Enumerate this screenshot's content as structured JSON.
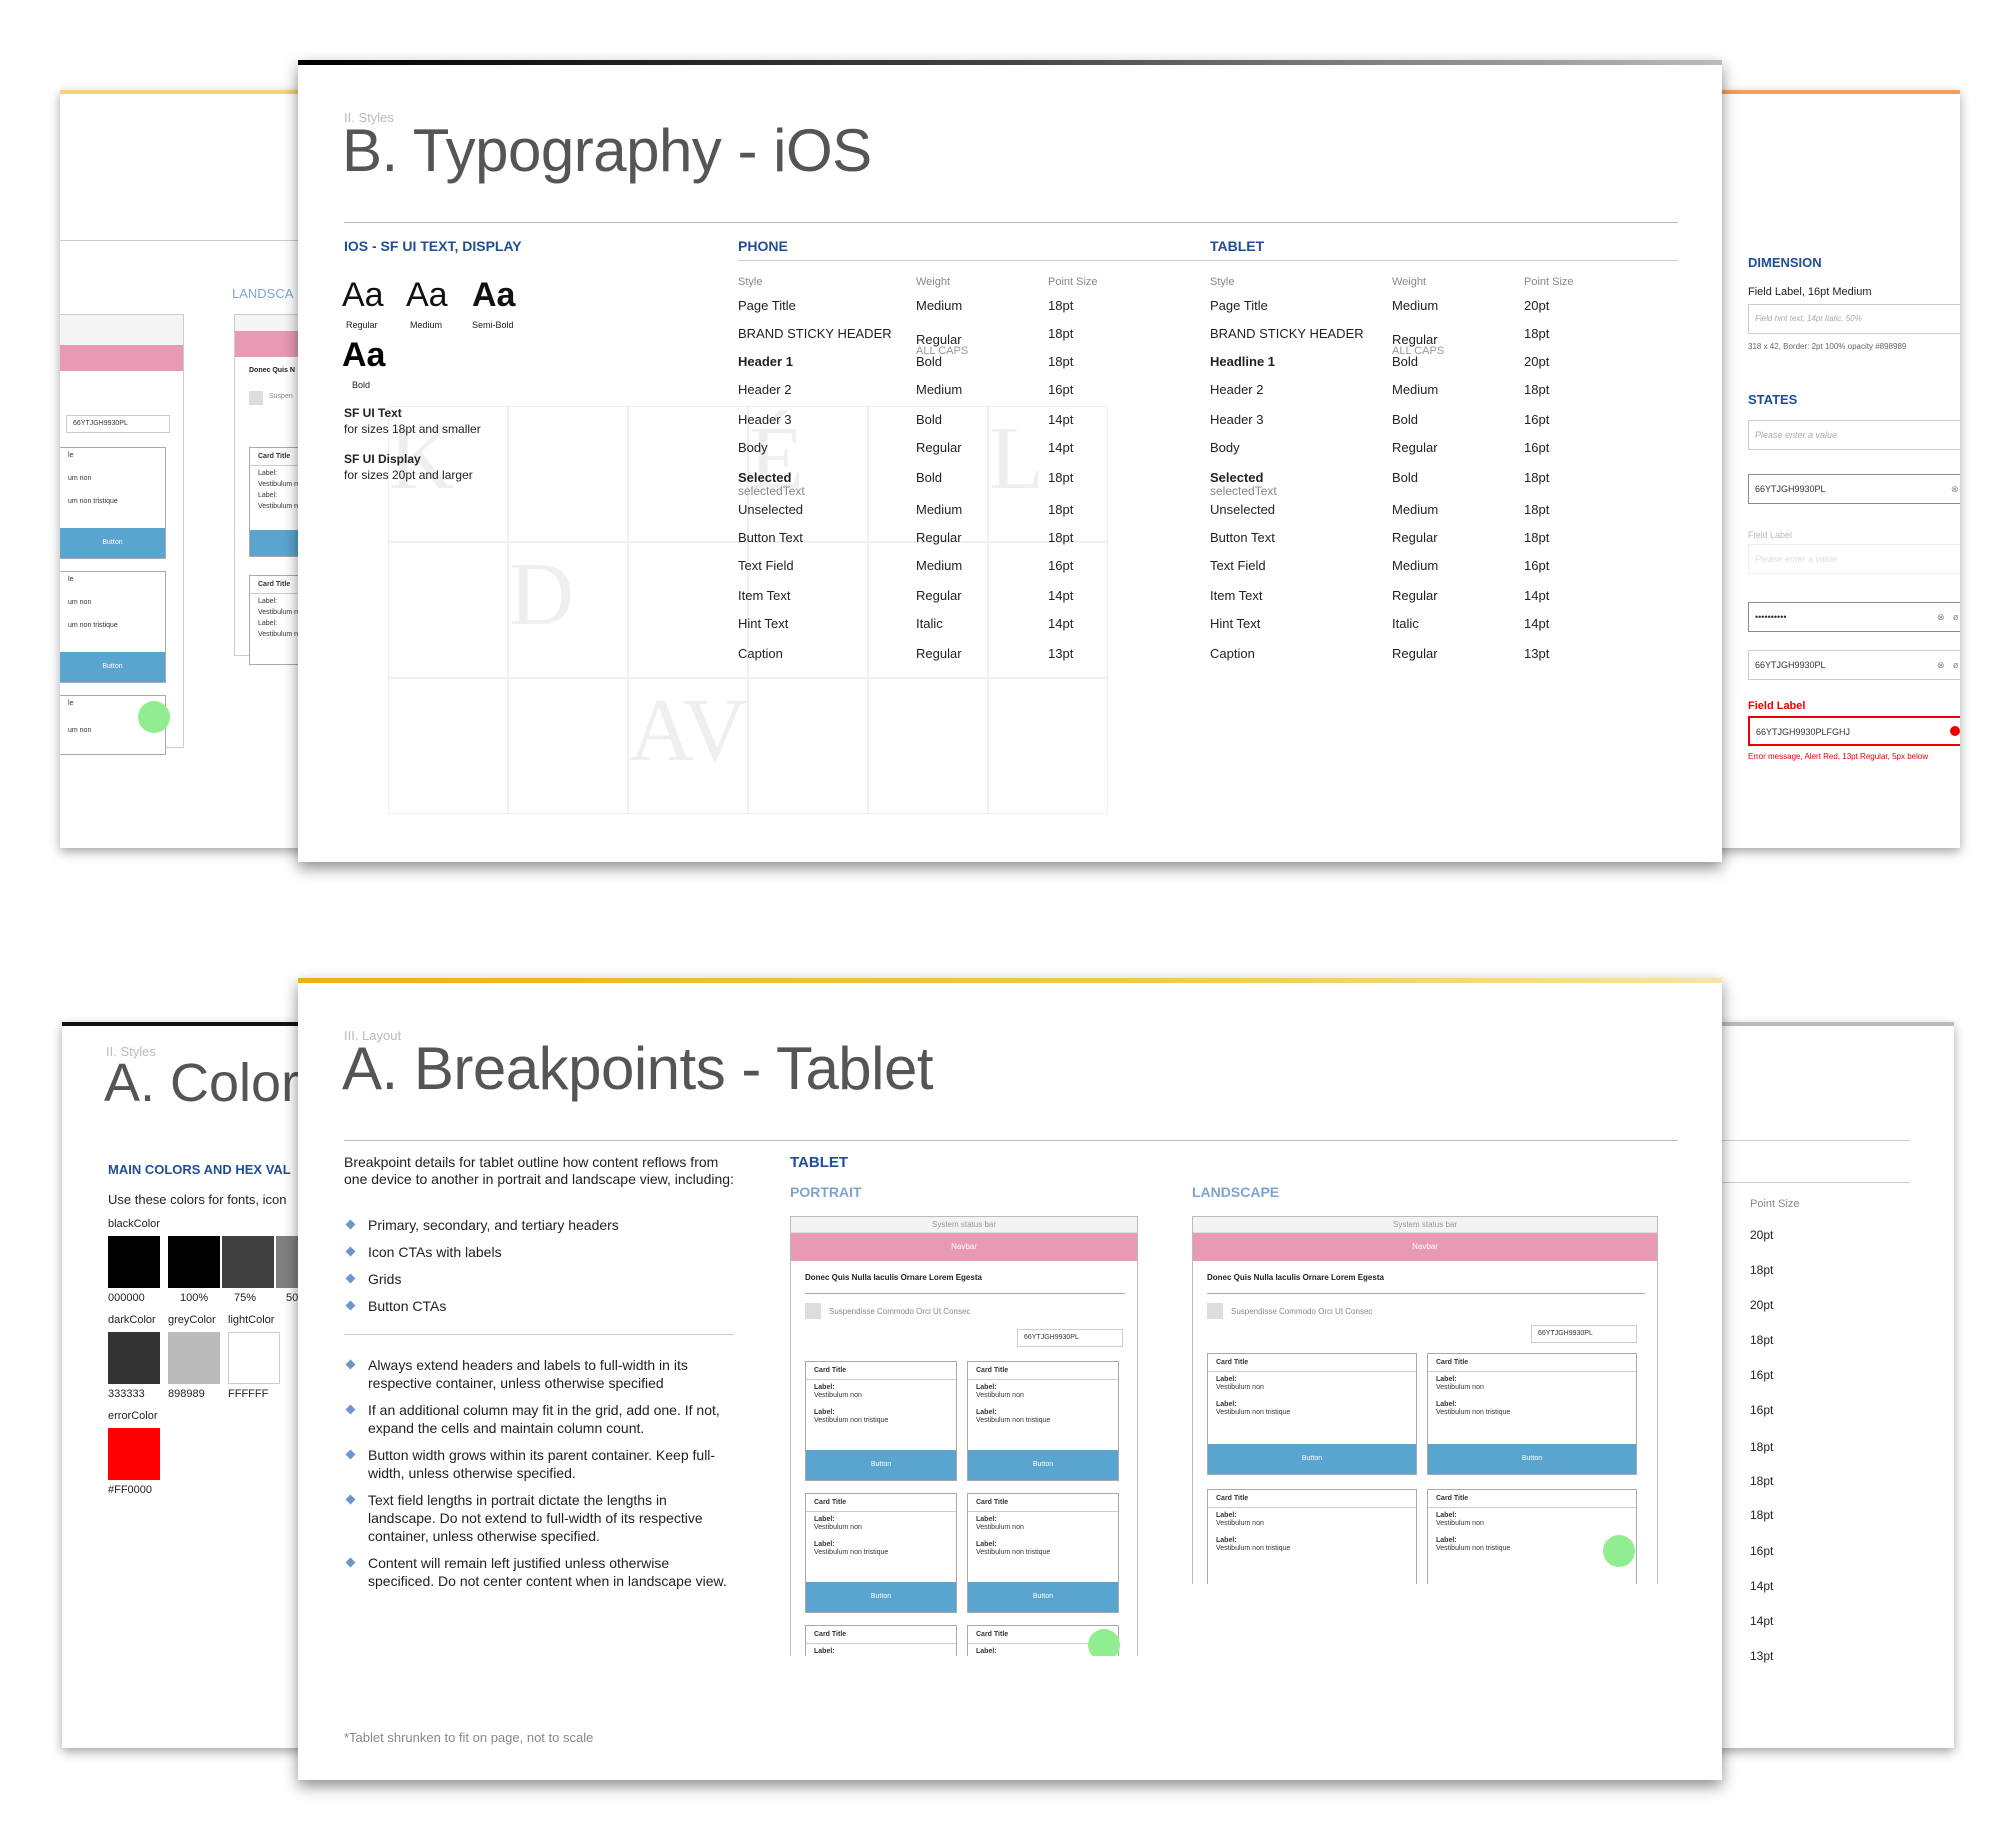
{
  "typo": {
    "section": "II. Styles",
    "title": "B. Typography - iOS",
    "font_heading": "IOS - SF UI TEXT, DISPLAY",
    "samples": [
      {
        "glyph": "Aa",
        "label": "Regular"
      },
      {
        "glyph": "Aa",
        "label": "Medium"
      },
      {
        "glyph": "Aa",
        "label": "Semi-Bold"
      },
      {
        "glyph": "Aa",
        "label": "Bold"
      }
    ],
    "sf_text": "SF UI Text",
    "sf_text_note": "for sizes 18pt and smaller",
    "sf_display": "SF UI Display",
    "sf_display_note": "for sizes 20pt and larger",
    "phone_heading": "PHONE",
    "tablet_heading": "TABLET",
    "col_style": "Style",
    "col_weight": "Weight",
    "col_size": "Point Size",
    "phone_rows": [
      {
        "style": "Page Title",
        "weight": "Medium",
        "size": "18pt"
      },
      {
        "style": "BRAND STICKY HEADER",
        "weight": "Regular",
        "note": "ALL CAPS",
        "size": "18pt"
      },
      {
        "style": "Header 1",
        "weight": "Bold",
        "size": "18pt"
      },
      {
        "style": "Header 2",
        "weight": "Medium",
        "size": "16pt"
      },
      {
        "style": "Header 3",
        "weight": "Bold",
        "size": "14pt"
      },
      {
        "style": "Body",
        "weight": "Regular",
        "size": "14pt"
      },
      {
        "style": "Selected",
        "sub": "selectedText",
        "weight": "Bold",
        "size": "18pt"
      },
      {
        "style": "Unselected",
        "weight": "Medium",
        "size": "18pt"
      },
      {
        "style": "Button Text",
        "weight": "Regular",
        "size": "18pt"
      },
      {
        "style": "Text Field",
        "weight": "Medium",
        "size": "16pt"
      },
      {
        "style": "Item Text",
        "weight": "Regular",
        "size": "14pt"
      },
      {
        "style": "Hint Text",
        "weight": "Italic",
        "size": "14pt"
      },
      {
        "style": "Caption",
        "weight": "Regular",
        "size": "13pt"
      }
    ],
    "tablet_rows": [
      {
        "style": "Page Title",
        "weight": "Medium",
        "size": "20pt"
      },
      {
        "style": "BRAND STICKY HEADER",
        "weight": "Regular",
        "note": "ALL CAPS",
        "size": "18pt"
      },
      {
        "style": "Headline 1",
        "weight": "Bold",
        "size": "20pt"
      },
      {
        "style": "Header 2",
        "weight": "Medium",
        "size": "18pt"
      },
      {
        "style": "Header 3",
        "weight": "Bold",
        "size": "16pt"
      },
      {
        "style": "Body",
        "weight": "Regular",
        "size": "16pt"
      },
      {
        "style": "Selected",
        "sub": "selectedText",
        "weight": "Bold",
        "size": "18pt"
      },
      {
        "style": "Unselected",
        "weight": "Medium",
        "size": "18pt"
      },
      {
        "style": "Button Text",
        "weight": "Regular",
        "size": "18pt"
      },
      {
        "style": "Text Field",
        "weight": "Medium",
        "size": "16pt"
      },
      {
        "style": "Item Text",
        "weight": "Regular",
        "size": "14pt"
      },
      {
        "style": "Hint Text",
        "weight": "Italic",
        "size": "14pt"
      },
      {
        "style": "Caption",
        "weight": "Regular",
        "size": "13pt"
      }
    ]
  },
  "right_top": {
    "dimension_heading": "DIMENSION",
    "field_label": "Field Label, 16pt Medium",
    "hint_placeholder": "Field hint text, 14pt Italic, 50%",
    "dim_note": "318 x 42, Border: 2pt 100% opacity #898989",
    "states_heading": "STATES",
    "state_placeholder": "Please enter a value",
    "value": "66YTJGH9930PL",
    "field_label2": "Field Label",
    "disabled_placeholder": "Please enter a value",
    "password": "••••••••••",
    "error_label": "Field Label",
    "error_value": "66YTJGH9930PLFGHJ",
    "error_msg": "Error message, Alert Red, 13pt Regular, 5px below"
  },
  "left_top": {
    "landscape": "LANDSCA",
    "quis": "Donec Quis N",
    "suspend": "Suspen",
    "value": "66YTJGH9930PL",
    "card_title": "Card Title",
    "label": "Label:",
    "vest": "Vestibulum non",
    "vest2": "Vestibulum non tristique",
    "button": "Button",
    "frag_le": "le",
    "frag_um": "um non",
    "frag_um2": "um non tristique"
  },
  "bp": {
    "section": "III. Layout",
    "title": "A. Breakpoints - Tablet",
    "intro": "Breakpoint details for tablet outline how content reflows from one device to another in portrait and landscape view, including:",
    "list1": [
      "Primary, secondary, and tertiary headers",
      "Icon CTAs with labels",
      "Grids",
      "Button CTAs"
    ],
    "list2": [
      "Always extend headers and labels to full-width in its respective container, unless otherwise specified",
      "If an additional column may fit in the grid, add one. If not, expand the cells and maintain column count.",
      "Button width grows within its parent container. Keep full-width, unless otherwise specified.",
      "Text field lengths in portrait dictate the lengths in landscape. Do not extend to full-width of its respective container, unless otherwise specified.",
      "Content will remain left justified unless otherwise specificed. Do not center content when in landscape view."
    ],
    "tablet": "TABLET",
    "portrait": "PORTRAIT",
    "landscape": "LANDSCAPE",
    "status": "System status bar",
    "navbar": "Navbar",
    "heading": "Donec Quis Nulla Iaculis Ornare Lorem Egesta",
    "sub": "Suspendisse Commodo Orci Ut Consec",
    "value": "66YTJGH9930PL",
    "card_title": "Card Title",
    "label": "Label:",
    "vest": "Vestibulum non",
    "vest2": "Vestibulum non tristique",
    "button": "Button",
    "footnote": "*Tablet shrunken to fit on page, not to scale"
  },
  "color_page": {
    "section": "II. Styles",
    "title": "A. Color",
    "heading": "MAIN COLORS AND HEX VAL",
    "desc": "Use these colors for fonts, icon",
    "black_label": "blackColor",
    "black_hex": "000000",
    "pct": [
      "100%",
      "75%",
      "50"
    ],
    "dark_label": "darkColor",
    "dark_hex": "333333",
    "grey_label": "greyColor",
    "grey_hex": "898989",
    "light_label": "lightColor",
    "light_hex": "FFFFFF",
    "error_label": "errorColor",
    "error_hex": "#FF0000"
  },
  "right_bottom": {
    "col": "Point Size",
    "sizes": [
      "20pt",
      "18pt",
      "20pt",
      "18pt",
      "16pt",
      "16pt",
      "18pt",
      "18pt",
      "18pt",
      "16pt",
      "14pt",
      "14pt",
      "13pt"
    ]
  }
}
